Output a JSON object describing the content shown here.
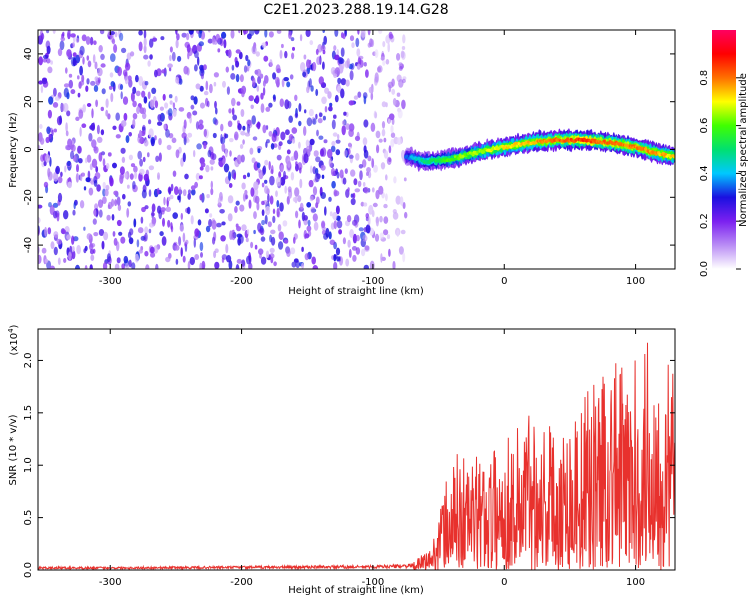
{
  "title": "C2E1.2023.288.19.14.G28",
  "chart_data": [
    {
      "type": "heatmap",
      "xlabel": "Height of straight line (km)",
      "ylabel": "Frequency (Hz)",
      "xlim": [
        -355,
        130
      ],
      "ylim": [
        -50,
        50
      ],
      "x_ticks": [
        -300,
        -200,
        -100,
        0,
        100
      ],
      "y_ticks": [
        -40,
        -20,
        0,
        20,
        40
      ],
      "colorbar": {
        "label": "Normalized spectral amplitude",
        "range": [
          0,
          1
        ],
        "ticks": [
          "0.0",
          "0.2",
          "0.4",
          "0.6",
          "0.8"
        ],
        "colormap": [
          "#ffffff",
          "#b98cf5",
          "#7b20f0",
          "#1a10e0",
          "#00c8ff",
          "#00e070",
          "#40ff00",
          "#ffff00",
          "#ff7000",
          "#ff0000",
          "#ff0060"
        ]
      },
      "noise_region": {
        "x_range": [
          -355,
          -75
        ],
        "amplitude": 0.25
      },
      "signal_trace": {
        "x": [
          -75,
          -60,
          -40,
          -20,
          0,
          20,
          40,
          60,
          80,
          100,
          120,
          130
        ],
        "freq": [
          -3,
          -5,
          -4,
          -1,
          1,
          3,
          4,
          4,
          3,
          1,
          -2,
          -3
        ],
        "peak_amplitude": [
          0.35,
          0.5,
          0.6,
          0.65,
          0.7,
          0.75,
          0.8,
          0.85,
          0.8,
          0.8,
          0.75,
          0.7
        ]
      }
    },
    {
      "type": "line",
      "xlabel": "Height of straight line (km)",
      "ylabel": "SNR (10 * v/v)",
      "y_multiplier": "(x10",
      "y_multiplier_exp": "4",
      "xlim": [
        -355,
        130
      ],
      "ylim": [
        0,
        2.3
      ],
      "x_ticks": [
        -300,
        -200,
        -100,
        0,
        100
      ],
      "y_ticks": [
        "0.0",
        "0.5",
        "1.0",
        "1.5",
        "2.0"
      ],
      "series": [
        {
          "color": "#e8312d",
          "x": [
            -355,
            -300,
            -200,
            -100,
            -70,
            -55,
            -45,
            -35,
            -20,
            0,
            20,
            40,
            60,
            80,
            95,
            110,
            130
          ],
          "y": [
            0.02,
            0.02,
            0.025,
            0.03,
            0.04,
            0.15,
            0.55,
            0.75,
            0.7,
            0.8,
            1.05,
            0.9,
            1.05,
            1.4,
            1.2,
            1.5,
            1.25
          ]
        }
      ]
    }
  ]
}
